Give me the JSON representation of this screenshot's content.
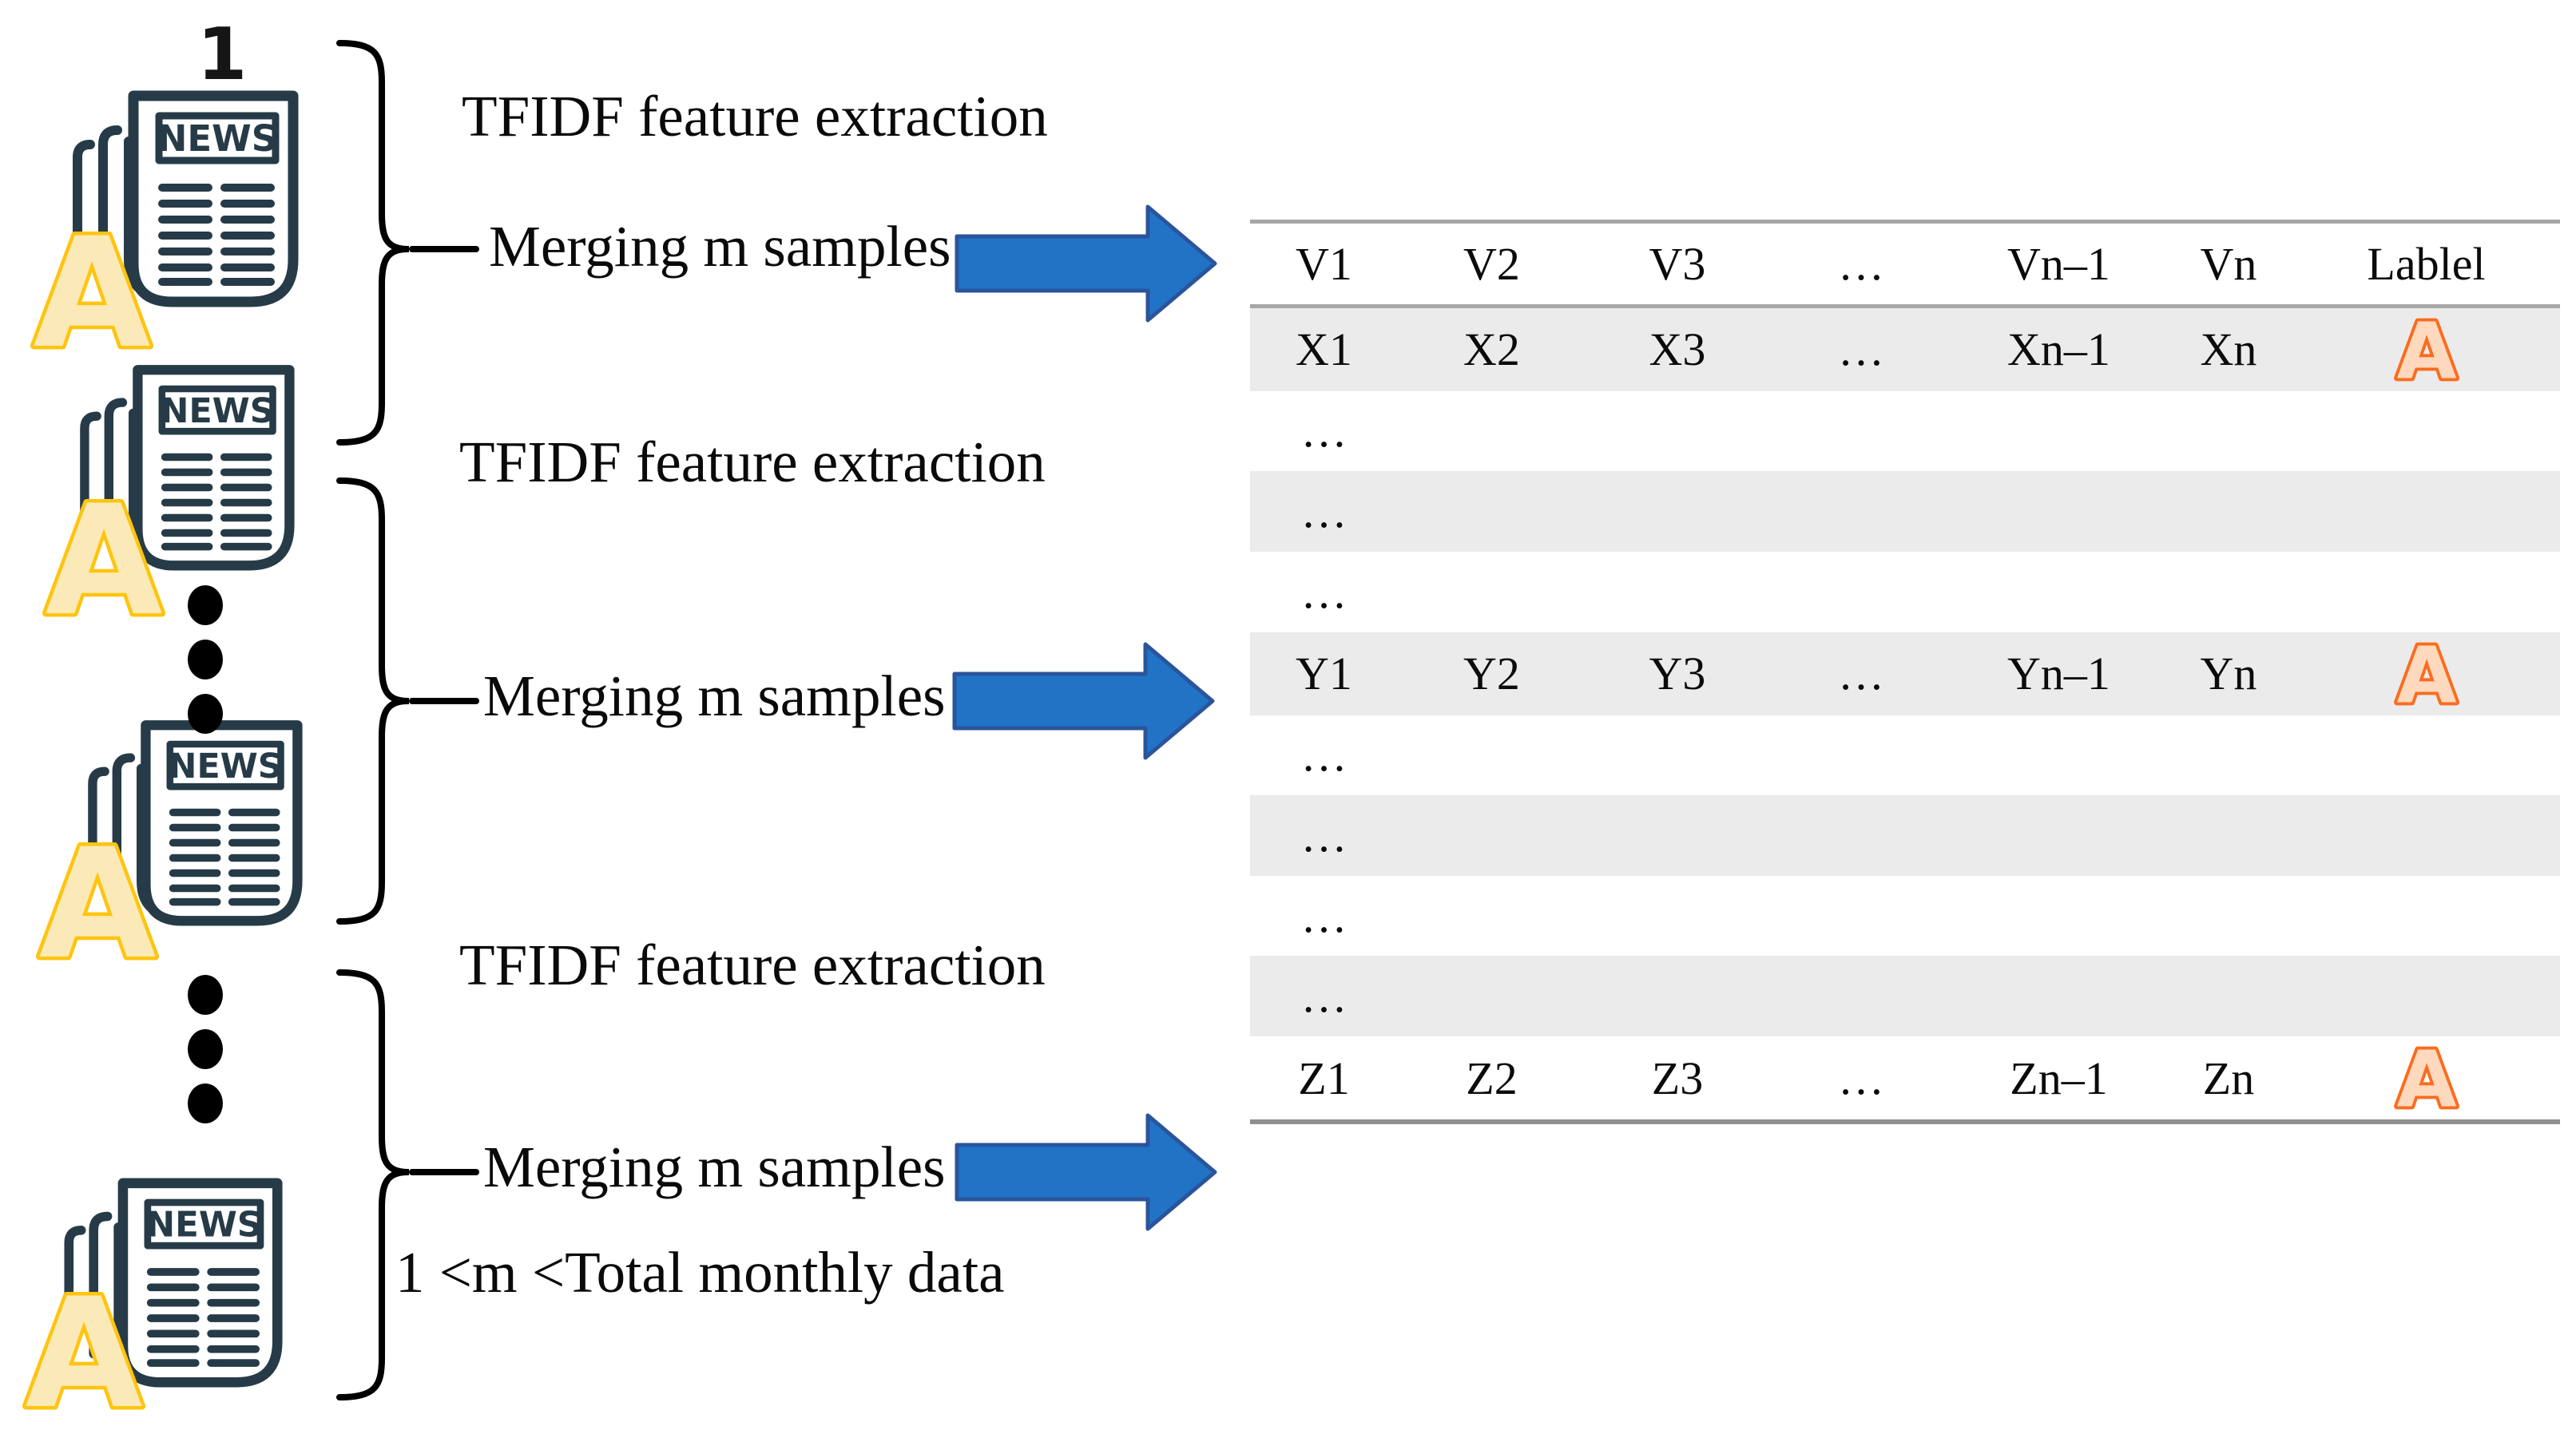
{
  "figure": {
    "group_count_label": "1",
    "news_icon_text": "NEWS",
    "doc_label": "A",
    "steps": {
      "tfidf": "TFIDF feature extraction",
      "merge": "Merging m samples",
      "constraint": "1 <m <Total monthly data"
    },
    "colors": {
      "icon_dark": "#263b47",
      "yellow_label_fill": "#fbe9b7",
      "yellow_label_stroke": "#ffc40e",
      "orange_label_fill": "#ffd9be",
      "orange_label_stroke": "#fb6c1e",
      "arrow_fill": "#2173c6",
      "arrow_stroke": "#2a549b",
      "row_shade": "#ebebeb",
      "table_line": "#a6a6a6"
    }
  },
  "table": {
    "headers": [
      "V1",
      "V2",
      "V3",
      "…",
      "Vn–1",
      "Vn",
      "Lablel"
    ],
    "rows": [
      {
        "cells": [
          "X1",
          "X2",
          "X3",
          "…",
          "Xn–1",
          "Xn"
        ],
        "label": "A",
        "shaded": true
      },
      {
        "cells": [
          "…",
          "",
          "",
          "",
          "",
          ""
        ],
        "label": "",
        "shaded": false
      },
      {
        "cells": [
          "…",
          "",
          "",
          "",
          "",
          ""
        ],
        "label": "",
        "shaded": true
      },
      {
        "cells": [
          "…",
          "",
          "",
          "",
          "",
          ""
        ],
        "label": "",
        "shaded": false
      },
      {
        "cells": [
          "Y1",
          "Y2",
          "Y3",
          "…",
          "Yn–1",
          "Yn"
        ],
        "label": "A",
        "shaded": true
      },
      {
        "cells": [
          "…",
          "",
          "",
          "",
          "",
          ""
        ],
        "label": "",
        "shaded": false
      },
      {
        "cells": [
          "…",
          "",
          "",
          "",
          "",
          ""
        ],
        "label": "",
        "shaded": true
      },
      {
        "cells": [
          "…",
          "",
          "",
          "",
          "",
          ""
        ],
        "label": "",
        "shaded": false
      },
      {
        "cells": [
          "…",
          "",
          "",
          "",
          "",
          ""
        ],
        "label": "",
        "shaded": true
      },
      {
        "cells": [
          "Z1",
          "Z2",
          "Z3",
          "…",
          "Zn–1",
          "Zn"
        ],
        "label": "A",
        "shaded": false
      }
    ]
  }
}
